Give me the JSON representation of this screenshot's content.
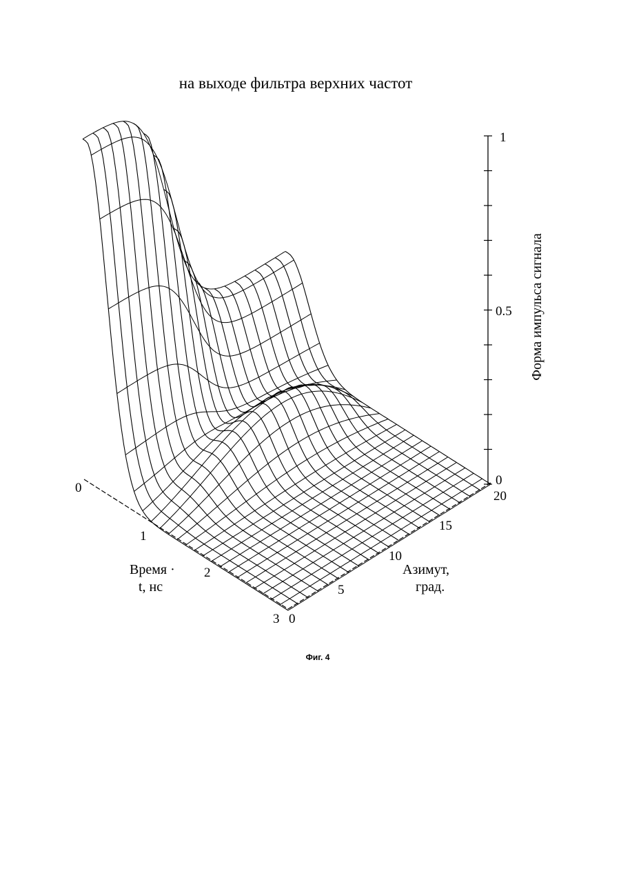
{
  "chart_data": {
    "type": "surface3d",
    "title": "на выходе фильтра верхних частот",
    "caption": "Фиг. 4",
    "z_axis": {
      "label": "Форма импульса сигнала",
      "range": [
        0,
        1
      ],
      "ticks": [
        "0",
        "0.5",
        "1"
      ]
    },
    "time_axis": {
      "label_line1": "Время ·",
      "label_line2": "t, нс",
      "range": [
        0,
        3
      ],
      "ticks": [
        "0",
        "1",
        "2",
        "3"
      ]
    },
    "azimuth_axis": {
      "label_line1": "Азимут,",
      "label_line2": "град.",
      "range": [
        0,
        20
      ],
      "ticks": [
        "0",
        "5",
        "10",
        "15",
        "20"
      ]
    },
    "time_ridge_value": 1.0,
    "azimuth_end_value": 0.3,
    "grid_lines": {
      "time": 25,
      "azimuth": 21
    }
  }
}
